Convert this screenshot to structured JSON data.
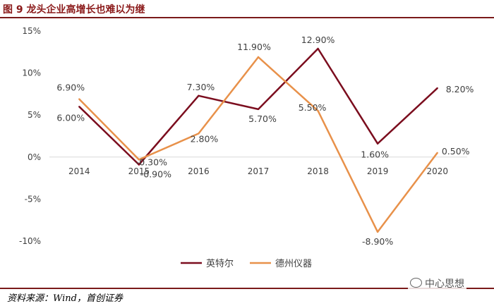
{
  "figure": {
    "title": "图 9  龙头企业高增长也难以为继",
    "source": "资料来源：Wind，首创证券",
    "watermark": "中心思想"
  },
  "chart_data": {
    "type": "line",
    "title": "",
    "xlabel": "",
    "ylabel": "",
    "x": [
      "2014",
      "2015",
      "2016",
      "2017",
      "2018",
      "2019",
      "2020"
    ],
    "ylim": [
      -10,
      15
    ],
    "yticks": [
      "-10%",
      "-5%",
      "0%",
      "5%",
      "10%",
      "15%"
    ],
    "ytick_values": [
      -10,
      -5,
      0,
      5,
      10,
      15
    ],
    "grid": false,
    "legend_position": "bottom-center",
    "series": [
      {
        "name": "英特尔",
        "color": "#7B0D1E",
        "values": [
          6.0,
          -0.9,
          7.3,
          5.7,
          12.9,
          1.6,
          8.2
        ],
        "labels": [
          "6.00%",
          "-0.90%",
          "7.30%",
          "5.70%",
          "12.90%",
          "1.60%",
          "8.20%"
        ]
      },
      {
        "name": "德州仪器",
        "color": "#E8914A",
        "values": [
          6.9,
          -0.3,
          2.8,
          11.9,
          5.5,
          -8.9,
          0.5
        ],
        "labels": [
          "6.90%",
          "-0.30%",
          "2.80%",
          "11.90%",
          "5.50%",
          "-8.90%",
          "0.50%"
        ]
      }
    ]
  }
}
